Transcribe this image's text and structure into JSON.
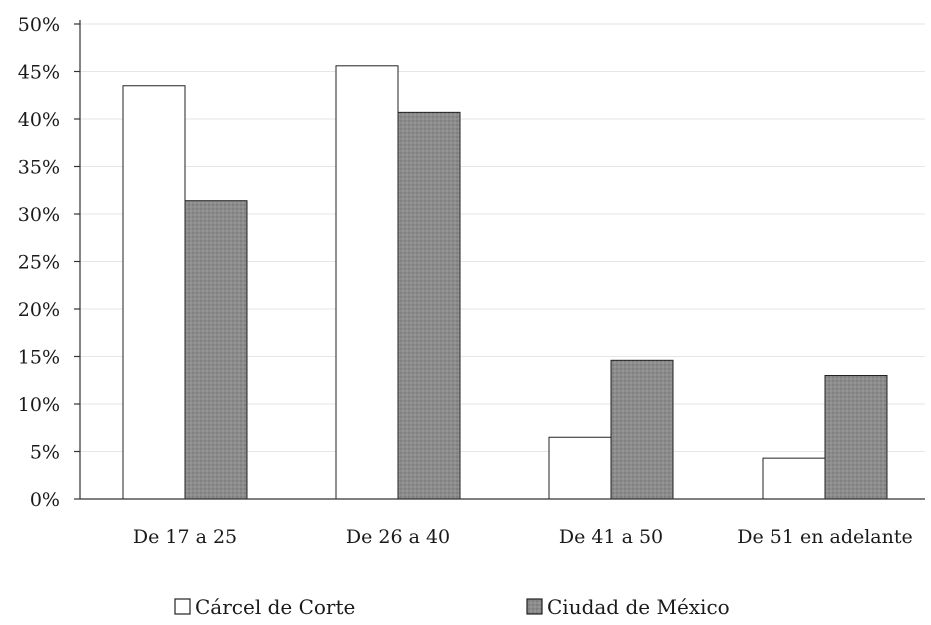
{
  "chart_data": {
    "type": "bar",
    "title": "",
    "xlabel": "",
    "ylabel": "",
    "categories": [
      "De 17 a 25",
      "De 26 a 40",
      "De 41 a 50",
      "De 51 en adelante"
    ],
    "series": [
      {
        "name": "Cárcel de Corte",
        "values": [
          43.5,
          45.6,
          6.5,
          4.3
        ],
        "color": "#ffffff"
      },
      {
        "name": "Ciudad de México",
        "values": [
          31.4,
          40.7,
          14.6,
          13.0
        ],
        "color": "#8c8c8c"
      }
    ],
    "ylim": [
      0,
      50
    ],
    "yticks": [
      "0%",
      "5%",
      "10%",
      "15%",
      "20%",
      "25%",
      "30%",
      "35%",
      "40%",
      "45%",
      "50%"
    ],
    "grid": true,
    "legend_position": "bottom-center"
  }
}
